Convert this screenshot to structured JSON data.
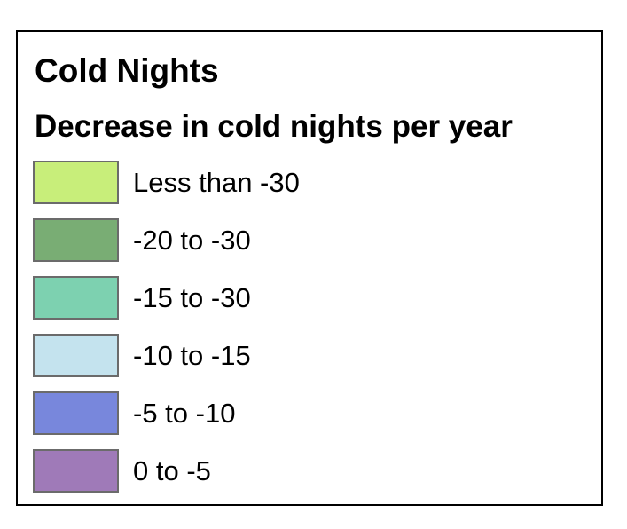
{
  "legend": {
    "title": "Cold Nights",
    "subtitle": "Decrease in cold nights per year",
    "items": [
      {
        "label": "Less than -30",
        "color": "#c8ee7a"
      },
      {
        "label": "-20 to -30",
        "color": "#79ad74"
      },
      {
        "label": "-15 to -30",
        "color": "#7dd1b0"
      },
      {
        "label": "-10 to -15",
        "color": "#c4e3ee"
      },
      {
        "label": "-5 to -10",
        "color": "#7887dc"
      },
      {
        "label": "0 to -5",
        "color": "#9f7ab8"
      }
    ]
  }
}
